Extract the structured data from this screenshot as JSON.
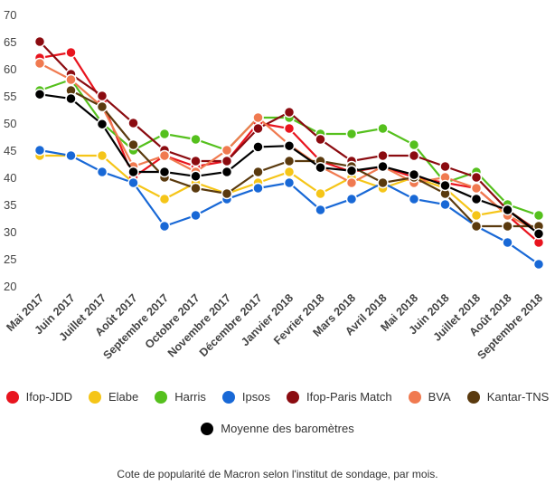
{
  "chart_data": {
    "type": "line",
    "title": "",
    "caption": "Cote de popularité de Macron selon l'institut de sondage, par mois.",
    "ylim": [
      20,
      70
    ],
    "yticks": [
      20,
      25,
      30,
      35,
      40,
      45,
      50,
      55,
      60,
      65,
      70
    ],
    "grid": false,
    "legend_position": "bottom",
    "categories": [
      "Mai 2017",
      "Juin 2017",
      "Juillet 2017",
      "Août 2017",
      "Septembre 2017",
      "Octobre 2017",
      "Novembre 2017",
      "Décembre 2017",
      "Janvier 2018",
      "Fevrier 2018",
      "Mars 2018",
      "Avril 2018",
      "Mai 2018",
      "Juin 2018",
      "Juillet 2018",
      "Août 2018",
      "Septembre 2018"
    ],
    "series": [
      {
        "name": "Ifop-JDD",
        "color": "#e8141e",
        "values": [
          62,
          63,
          54,
          40,
          44,
          42,
          43,
          50,
          49,
          43,
          41,
          42,
          40,
          39,
          38,
          33,
          28
        ]
      },
      {
        "name": "Elabe",
        "color": "#f5c518",
        "values": [
          44,
          44,
          44,
          39,
          36,
          39,
          37,
          39,
          41,
          37,
          40,
          38,
          40,
          38,
          33,
          34,
          30
        ]
      },
      {
        "name": "Harris",
        "color": "#55c01d",
        "values": [
          56,
          58,
          50,
          45,
          48,
          47,
          45,
          51,
          51,
          48,
          48,
          49,
          46,
          39,
          41,
          35,
          33
        ]
      },
      {
        "name": "Ipsos",
        "color": "#1868d6",
        "values": [
          45,
          44,
          41,
          39,
          31,
          33,
          36,
          38,
          39,
          34,
          36,
          39,
          36,
          35,
          31,
          28,
          24
        ]
      },
      {
        "name": "Ifop-Paris Match",
        "color": "#8b0b10",
        "values": [
          65,
          59,
          55,
          50,
          45,
          43,
          43,
          49,
          52,
          47,
          43,
          44,
          44,
          42,
          40,
          34,
          30
        ]
      },
      {
        "name": "BVA",
        "color": "#f07a50",
        "values": [
          61,
          58,
          53,
          42,
          44,
          41,
          45,
          51,
          46,
          42,
          39,
          42,
          39,
          40,
          38,
          33,
          30
        ]
      },
      {
        "name": "Kantar-TNS",
        "color": "#5a3a0e",
        "values": [
          null,
          56,
          53,
          46,
          40,
          38,
          37,
          41,
          43,
          43,
          42,
          39,
          40,
          37,
          31,
          31,
          31
        ]
      },
      {
        "name": "Moyenne des baromètres",
        "color": "#000000",
        "values": [
          55.3,
          54.5,
          49.8,
          41,
          41,
          40.2,
          41,
          45.6,
          45.8,
          41.8,
          41.2,
          42,
          40.5,
          38.5,
          36,
          34,
          29.6
        ]
      }
    ]
  }
}
